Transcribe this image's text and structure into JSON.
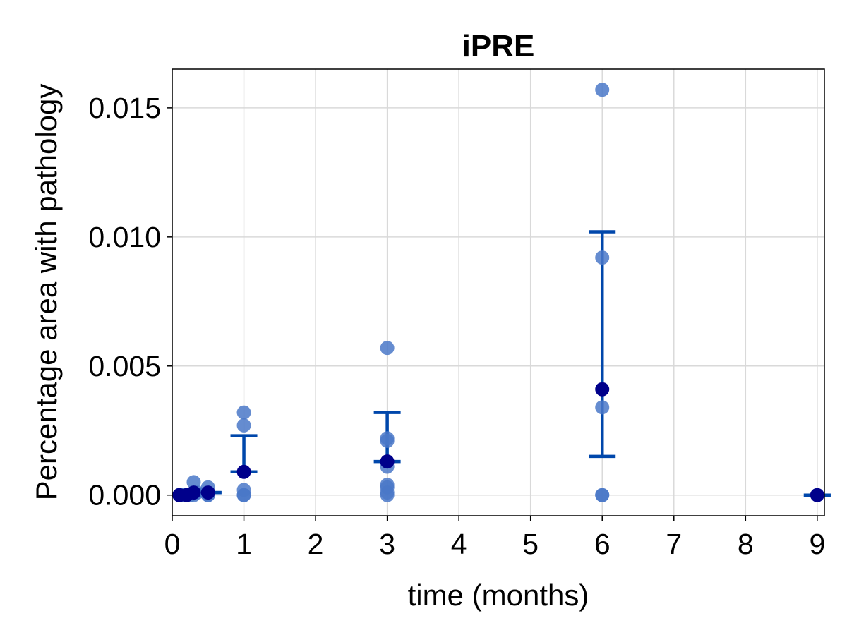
{
  "chart_data": {
    "type": "scatter",
    "title": "iPRE",
    "xlabel": "time (months)",
    "ylabel": "Percentage area with pathology",
    "xlim": [
      0,
      9.1
    ],
    "ylim": [
      -0.0008,
      0.0165
    ],
    "xticks": [
      0,
      1,
      2,
      3,
      4,
      5,
      6,
      7,
      8,
      9
    ],
    "xtick_labels": [
      "0",
      "1",
      "2",
      "3",
      "4",
      "5",
      "6",
      "7",
      "8",
      "9"
    ],
    "yticks": [
      0.0,
      0.005,
      0.01,
      0.015
    ],
    "ytick_labels": [
      "0.000",
      "0.005",
      "0.010",
      "0.015"
    ],
    "grid": true,
    "colors": {
      "points": "#4a78c8",
      "mean": "#00008b",
      "error_bars": "#0047ab"
    },
    "series": [
      {
        "points": [
          {
            "x": 0.1,
            "y": 0.0
          },
          {
            "x": 0.12,
            "y": 0.0
          },
          {
            "x": 0.15,
            "y": 0.0
          },
          {
            "x": 0.2,
            "y": 0.0
          },
          {
            "x": 0.25,
            "y": 0.0
          },
          {
            "x": 0.3,
            "y": 0.0
          },
          {
            "x": 0.3,
            "y": 0.0005
          },
          {
            "x": 0.35,
            "y": 0.0001
          },
          {
            "x": 0.5,
            "y": 0.0003
          },
          {
            "x": 0.5,
            "y": 0.0
          },
          {
            "x": 0.5,
            "y": 0.0
          },
          {
            "x": 1,
            "y": 0.0032
          },
          {
            "x": 1,
            "y": 0.0027
          },
          {
            "x": 1,
            "y": 0.0002
          },
          {
            "x": 1,
            "y": 0.0
          },
          {
            "x": 1,
            "y": 0.0
          },
          {
            "x": 3,
            "y": 0.0057
          },
          {
            "x": 3,
            "y": 0.0022
          },
          {
            "x": 3,
            "y": 0.0021
          },
          {
            "x": 3,
            "y": 0.0011
          },
          {
            "x": 3,
            "y": 0.0004
          },
          {
            "x": 3,
            "y": 0.0003
          },
          {
            "x": 3,
            "y": 0.0001
          },
          {
            "x": 3,
            "y": 0.0
          },
          {
            "x": 6,
            "y": 0.0157
          },
          {
            "x": 6,
            "y": 0.0092
          },
          {
            "x": 6,
            "y": 0.0034
          },
          {
            "x": 6,
            "y": 0.0
          },
          {
            "x": 6,
            "y": 0.0
          },
          {
            "x": 9,
            "y": 0.0
          }
        ],
        "means": [
          {
            "x": 0.1,
            "y": 0.0
          },
          {
            "x": 0.2,
            "y": 0.0
          },
          {
            "x": 0.3,
            "y": 0.0001
          },
          {
            "x": 0.5,
            "y": 0.0001
          },
          {
            "x": 1,
            "y": 0.0009
          },
          {
            "x": 3,
            "y": 0.0013
          },
          {
            "x": 6,
            "y": 0.0041
          },
          {
            "x": 9,
            "y": 0.0
          }
        ],
        "error_bars": [
          {
            "x": 0.25,
            "low": 0.0,
            "high": 0.0002
          },
          {
            "x": 0.5,
            "low": 0.0001,
            "high": 0.0001
          },
          {
            "x": 1,
            "low": 0.0009,
            "high": 0.0023
          },
          {
            "x": 3,
            "low": 0.0013,
            "high": 0.0032
          },
          {
            "x": 6,
            "low": 0.0015,
            "high": 0.0102
          },
          {
            "x": 9,
            "low": 0.0,
            "high": 0.0
          }
        ]
      }
    ]
  }
}
